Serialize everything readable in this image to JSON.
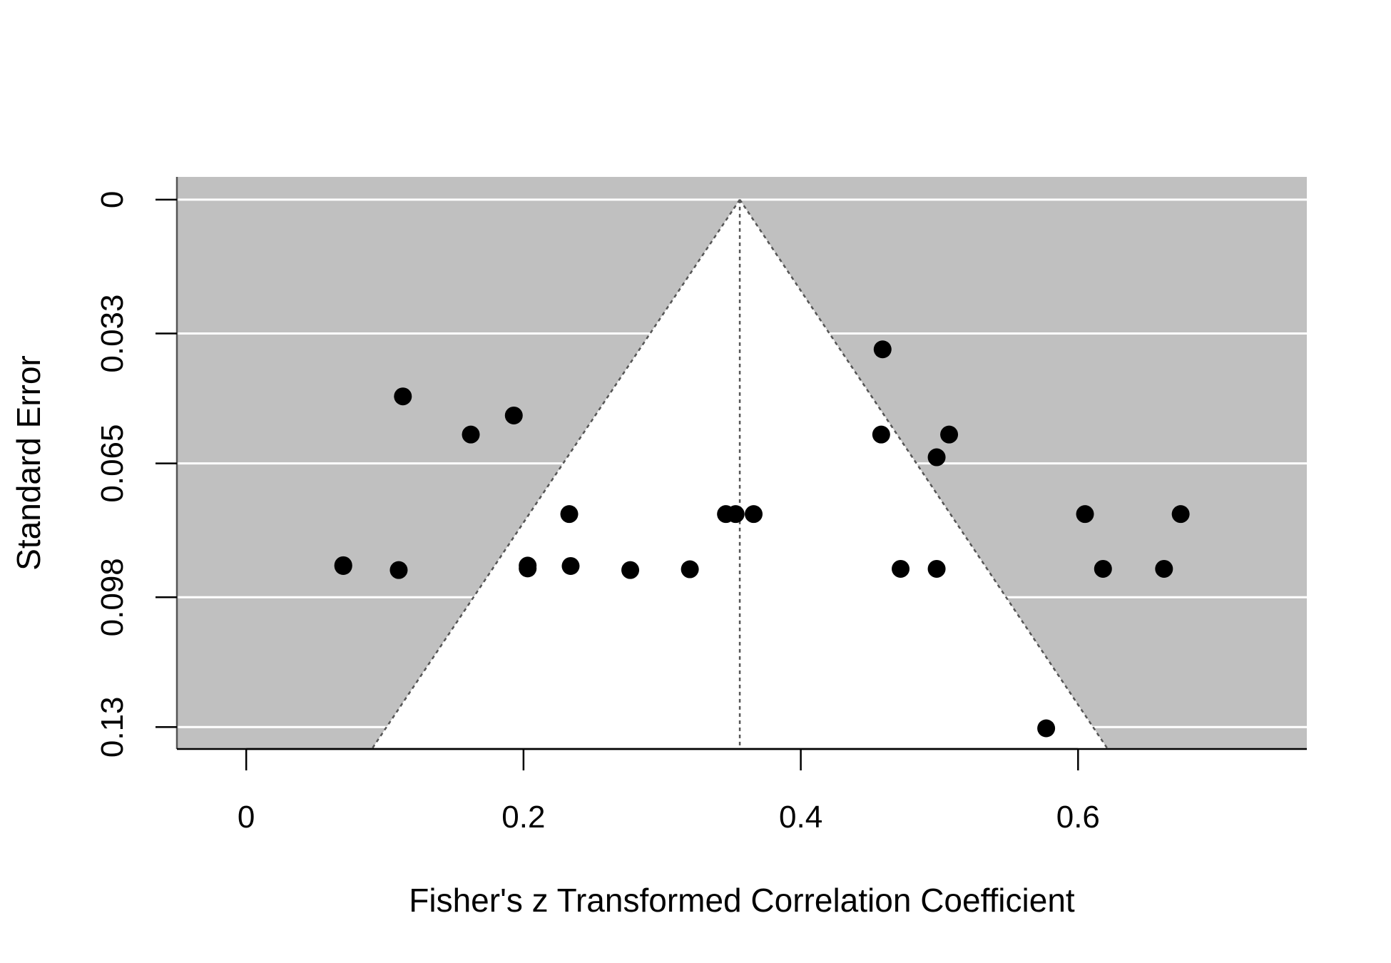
{
  "chart_data": {
    "type": "scatter",
    "subtype": "funnel",
    "xlabel": "Fisher's z Transformed Correlation Coefficient",
    "ylabel": "Standard Error",
    "xlim": [
      -0.05,
      0.765
    ],
    "ylim": [
      0.1354,
      -0.0056
    ],
    "y_reversed": true,
    "x_ticks": [
      0,
      0.2,
      0.4,
      0.6
    ],
    "x_tick_labels": [
      "0",
      "0.2",
      "0.4",
      "0.6"
    ],
    "y_ticks": [
      0,
      0.033,
      0.065,
      0.098,
      0.13
    ],
    "y_tick_labels": [
      "0",
      "0.033",
      "0.065",
      "0.098",
      "0.13"
    ],
    "grid": true,
    "funnel_center": 0.356,
    "funnel_multiplier": 1.96,
    "colors": {
      "background": "#c0c0c0",
      "funnel_region": "#ffffff",
      "grid": "#ffffff",
      "points": "#000000",
      "reference_line": "#555555"
    },
    "points": [
      {
        "x": 0.07,
        "y": 0.0901
      },
      {
        "x": 0.07,
        "y": 0.0903
      },
      {
        "x": 0.11,
        "y": 0.0913
      },
      {
        "x": 0.113,
        "y": 0.0485
      },
      {
        "x": 0.162,
        "y": 0.0579
      },
      {
        "x": 0.193,
        "y": 0.0532
      },
      {
        "x": 0.203,
        "y": 0.0902
      },
      {
        "x": 0.203,
        "y": 0.0909
      },
      {
        "x": 0.233,
        "y": 0.0775
      },
      {
        "x": 0.234,
        "y": 0.0903
      },
      {
        "x": 0.277,
        "y": 0.0913
      },
      {
        "x": 0.32,
        "y": 0.0911
      },
      {
        "x": 0.346,
        "y": 0.0775
      },
      {
        "x": 0.353,
        "y": 0.0775
      },
      {
        "x": 0.366,
        "y": 0.0775
      },
      {
        "x": 0.458,
        "y": 0.0579
      },
      {
        "x": 0.459,
        "y": 0.0369
      },
      {
        "x": 0.472,
        "y": 0.091
      },
      {
        "x": 0.498,
        "y": 0.0635
      },
      {
        "x": 0.498,
        "y": 0.091
      },
      {
        "x": 0.507,
        "y": 0.0579
      },
      {
        "x": 0.577,
        "y": 0.1303
      },
      {
        "x": 0.605,
        "y": 0.0775
      },
      {
        "x": 0.618,
        "y": 0.091
      },
      {
        "x": 0.662,
        "y": 0.091
      },
      {
        "x": 0.674,
        "y": 0.0775
      }
    ]
  }
}
